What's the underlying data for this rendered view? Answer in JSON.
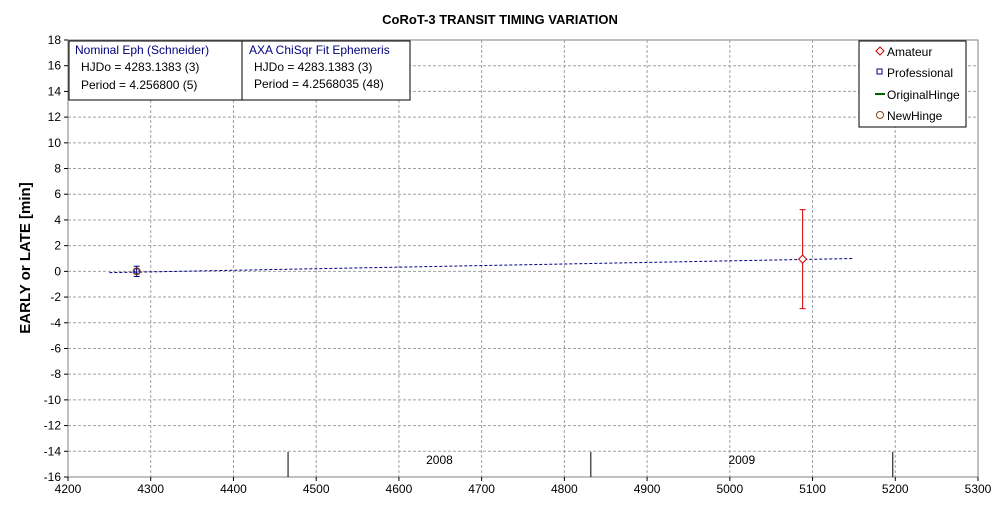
{
  "chart_data": {
    "type": "scatter",
    "title": "CoRoT-3 TRANSIT TIMING VARIATION",
    "xlabel": "",
    "ylabel": "EARLY or LATE [min]",
    "xlim": [
      4200,
      5300
    ],
    "ylim": [
      -16,
      18
    ],
    "x_ticks": [
      4200,
      4300,
      4400,
      4500,
      4600,
      4700,
      4800,
      4900,
      5000,
      5100,
      5200,
      5300
    ],
    "y_ticks": [
      18,
      16,
      14,
      12,
      10,
      8,
      6,
      4,
      2,
      0,
      -2,
      -4,
      -6,
      -8,
      -10,
      -12,
      -14,
      -16
    ],
    "grid": true,
    "legend_position": "top-right",
    "series": [
      {
        "name": "Amateur",
        "marker": "diamond",
        "color": "#cc0000",
        "points": [
          {
            "x": 5088,
            "y": 0.95,
            "err": 3.85
          }
        ]
      },
      {
        "name": "Professional",
        "marker": "square",
        "color": "#000080",
        "points": [
          {
            "x": 4283,
            "y": 0.0,
            "err": 0.4
          }
        ]
      },
      {
        "name": "OriginalHinge",
        "marker": "line",
        "color": "#006400",
        "points": []
      },
      {
        "name": "NewHinge",
        "marker": "circle",
        "color": "#8b4513",
        "points": [
          {
            "x": 4283,
            "y": 0.0,
            "err": 0.0
          }
        ]
      }
    ],
    "trend_line": {
      "color": "#000080",
      "style": "dashed",
      "points": [
        {
          "x": 4250,
          "y": -0.1
        },
        {
          "x": 5150,
          "y": 1.0
        }
      ]
    },
    "year_markers": [
      {
        "x": 4466,
        "label": "2008"
      },
      {
        "x": 4832,
        "label": "2009"
      },
      {
        "x": 5197,
        "label": ""
      }
    ],
    "info_boxes": [
      {
        "title": "Nominal Eph (Schneider)",
        "line1": "HJDo = 4283.1383 (3)",
        "line2": "Period = 4.256800 (5)"
      },
      {
        "title": "AXA ChiSqr Fit Ephemeris",
        "line1": "HJDo = 4283.1383 (3)",
        "line2": "Period = 4.2568035 (48)"
      }
    ],
    "colors": {
      "grid": "#a0a0a0",
      "amateur": "#cc0000",
      "professional": "#000080",
      "original_hinge": "#006400",
      "new_hinge": "#8b4513",
      "trend": "#000080",
      "box_title": "#000080"
    }
  }
}
